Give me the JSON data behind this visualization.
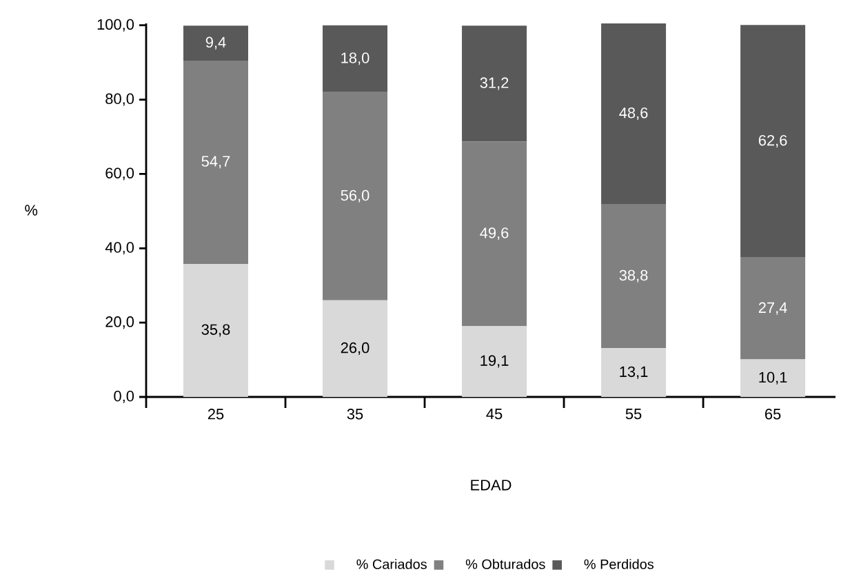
{
  "chart_data": {
    "type": "bar",
    "stacked": true,
    "xlabel": "EDAD",
    "ylabel": "%",
    "categories": [
      "25",
      "35",
      "45",
      "55",
      "65"
    ],
    "series": [
      {
        "name": "% Cariados",
        "color": "#d9d9d9",
        "values": [
          35.8,
          26.0,
          19.1,
          13.1,
          10.1
        ],
        "value_labels": [
          "35,8",
          "26,0",
          "19,1",
          "13,1",
          "10,1"
        ]
      },
      {
        "name": "% Obturados",
        "color": "#808080",
        "values": [
          54.7,
          56.0,
          49.6,
          38.8,
          27.4
        ],
        "value_labels": [
          "54,7",
          "56,0",
          "49,6",
          "38,8",
          "27,4"
        ]
      },
      {
        "name": "% Perdidos",
        "color": "#595959",
        "values": [
          9.4,
          18.0,
          31.2,
          48.6,
          62.6
        ],
        "value_labels": [
          "9,4",
          "18,0",
          "31,2",
          "48,6",
          "62,6"
        ]
      }
    ],
    "ylim": [
      0,
      100.5
    ],
    "yticks": [
      {
        "value": 0,
        "label": "0,0"
      },
      {
        "value": 20,
        "label": "20,0"
      },
      {
        "value": 40,
        "label": "40,0"
      },
      {
        "value": 60,
        "label": "60,0"
      },
      {
        "value": 80,
        "label": "80,0"
      },
      {
        "value": 100,
        "label": "100,0"
      }
    ],
    "legend": "bottom"
  }
}
